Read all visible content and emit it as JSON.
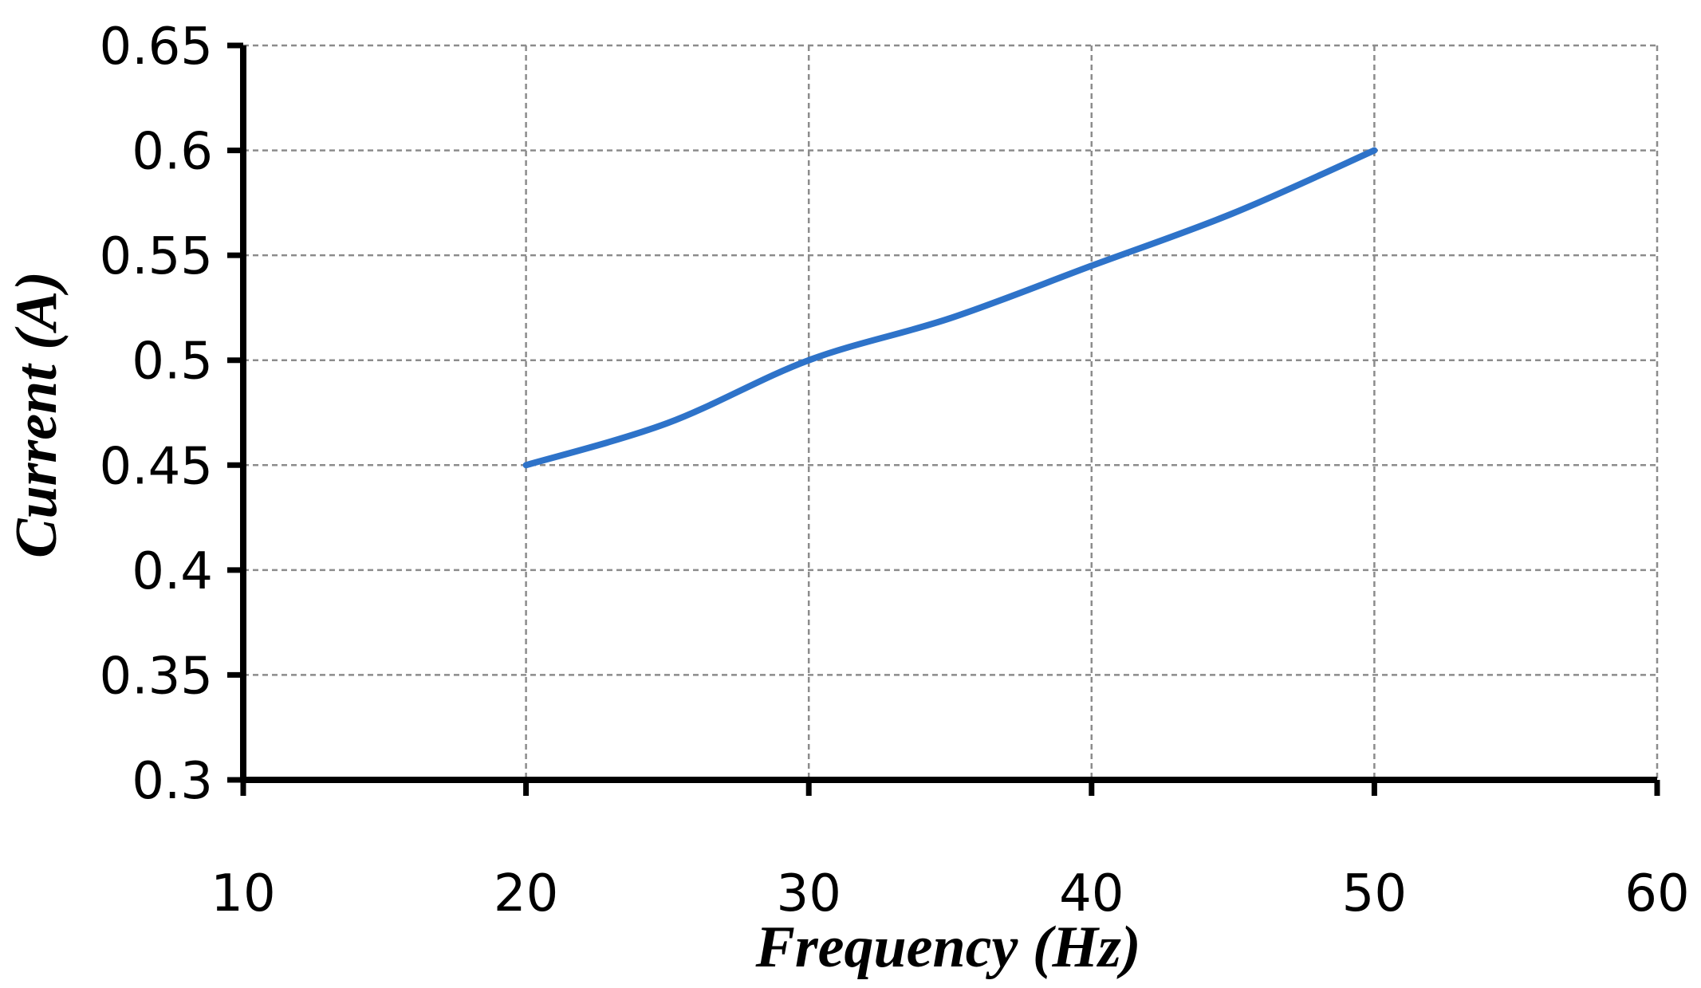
{
  "chart_data": {
    "type": "line",
    "xlabel": "Frequency (Hz)",
    "ylabel": "Current (A)",
    "xlim": [
      10,
      60
    ],
    "ylim": [
      0.3,
      0.65
    ],
    "x_ticks": [
      10,
      20,
      30,
      40,
      50,
      60
    ],
    "y_ticks": [
      0.3,
      0.35,
      0.4,
      0.45,
      0.5,
      0.55,
      0.6,
      0.65
    ],
    "x_tick_labels": [
      "10",
      "20",
      "30",
      "40",
      "50",
      "60"
    ],
    "y_tick_labels": [
      "0.3",
      "0.35",
      "0.4",
      "0.45",
      "0.5",
      "0.55",
      "0.6",
      "0.65"
    ],
    "grid": true,
    "legend": "none",
    "series": [
      {
        "color": "#2e73c9",
        "x": [
          20,
          25,
          30,
          35,
          40,
          45,
          50
        ],
        "y": [
          0.45,
          0.47,
          0.5,
          0.52,
          0.545,
          0.57,
          0.6
        ]
      }
    ]
  }
}
